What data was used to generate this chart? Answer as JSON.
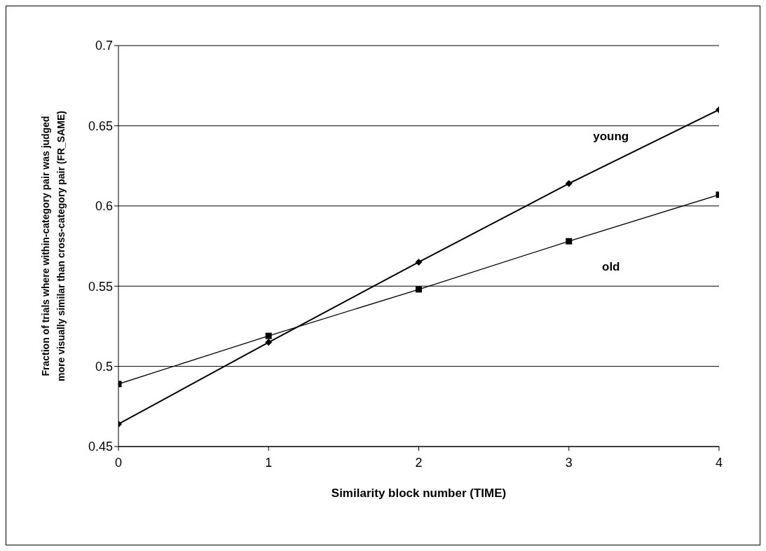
{
  "chart_data": {
    "type": "line",
    "xlabel": "Similarity block number (TIME)",
    "ylabel": "Fraction of trials where within-category pair was judged more visually similar than cross-category pair (FR_SAME)",
    "x": [
      0,
      1,
      2,
      3,
      4
    ],
    "xlim": [
      0,
      4
    ],
    "xticks": [
      0,
      1,
      2,
      3,
      4
    ],
    "ylim": [
      0.45,
      0.7
    ],
    "yticks": [
      0.45,
      0.5,
      0.55,
      0.6,
      0.65,
      0.7
    ],
    "grid": "y",
    "legend": false,
    "series": [
      {
        "name": "young",
        "color": "#000000",
        "marker": "diamond",
        "values": [
          0.464,
          0.515,
          0.565,
          0.614,
          0.66
        ]
      },
      {
        "name": "old",
        "color": "#000000",
        "marker": "square",
        "values": [
          0.489,
          0.519,
          0.548,
          0.578,
          0.607
        ]
      }
    ]
  }
}
